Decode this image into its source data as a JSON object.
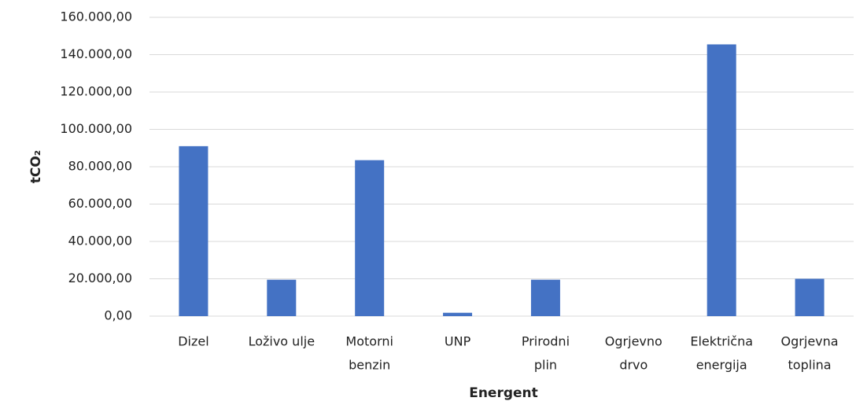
{
  "chart_data": {
    "type": "bar",
    "x_label": "Energent",
    "y_label": "tCO₂",
    "categories": [
      [
        "Dizel"
      ],
      [
        "Loživo ulje"
      ],
      [
        "Motorni",
        "benzin"
      ],
      [
        "UNP"
      ],
      [
        "Prirodni",
        "plin"
      ],
      [
        "Ogrjevno",
        "drvo"
      ],
      [
        "Električna",
        "energija"
      ],
      [
        "Ogrjevna",
        "toplina"
      ]
    ],
    "values": [
      91000,
      19500,
      83500,
      1800,
      19500,
      0,
      145500,
      20000
    ],
    "color": "#4472c4",
    "ylim": [
      0,
      160000
    ],
    "yticks": [
      {
        "value": 0,
        "label": "0,00"
      },
      {
        "value": 20000,
        "label": "20.000,00"
      },
      {
        "value": 40000,
        "label": "40.000,00"
      },
      {
        "value": 60000,
        "label": "60.000,00"
      },
      {
        "value": 80000,
        "label": "80.000,00"
      },
      {
        "value": 100000,
        "label": "100.000,00"
      },
      {
        "value": 120000,
        "label": "120.000,00"
      },
      {
        "value": 140000,
        "label": "140.000,00"
      },
      {
        "value": 160000,
        "label": "160.000,00"
      }
    ],
    "grid": true
  }
}
